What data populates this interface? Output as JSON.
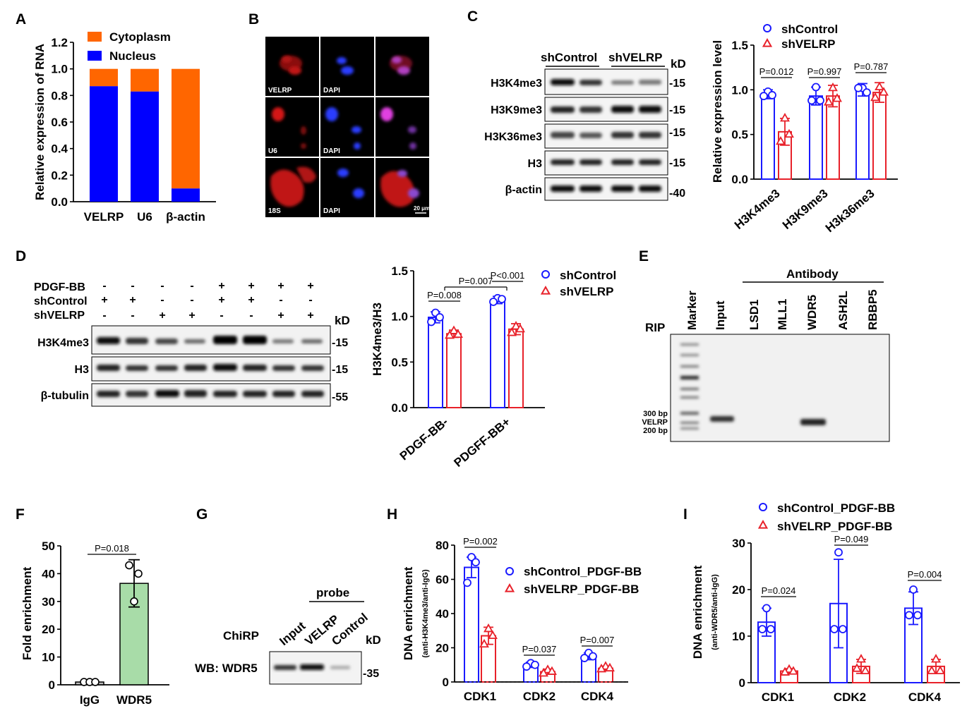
{
  "panels": [
    "A",
    "B",
    "C",
    "D",
    "E",
    "F",
    "G",
    "H",
    "I"
  ],
  "colors": {
    "control": "#1a1aff",
    "velrp": "#e8212a",
    "cytoplasm": "#ff6600",
    "nucleus": "#0000ff",
    "wdr5": "#a8dca8"
  },
  "chart_data": [
    {
      "id": "A",
      "type": "bar",
      "stacked": true,
      "categories": [
        "VELRP",
        "U6",
        "β-actin"
      ],
      "series": [
        {
          "name": "Nucleus",
          "values": [
            0.87,
            0.83,
            0.1
          ]
        },
        {
          "name": "Cytoplasm",
          "values": [
            0.13,
            0.17,
            0.9
          ]
        }
      ],
      "ylabel": "Relative expression of RNA",
      "ylim": [
        0,
        1.2
      ],
      "yticks": [
        "0.0",
        "0.2",
        "0.4",
        "0.6",
        "0.8",
        "1.0",
        "1.2"
      ],
      "legend": "top-right"
    },
    {
      "id": "C",
      "type": "bar",
      "categories": [
        "H3K4me3",
        "H3K9me3",
        "H3k36me3"
      ],
      "series": [
        {
          "name": "shControl",
          "values": [
            0.95,
            0.93,
            1.0
          ],
          "errors": [
            0.05,
            0.1,
            0.07
          ]
        },
        {
          "name": "shVELRP",
          "values": [
            0.53,
            0.93,
            0.97
          ],
          "errors": [
            0.15,
            0.12,
            0.11
          ]
        }
      ],
      "points": [
        [
          [
            0.98,
            0.94,
            0.93
          ],
          [
            0.68,
            0.5,
            0.42
          ]
        ],
        [
          [
            1.03,
            0.88,
            0.88
          ],
          [
            1.02,
            0.9,
            0.86
          ]
        ],
        [
          [
            1.02,
            0.97,
            1.02
          ],
          [
            1.03,
            0.97,
            0.91
          ]
        ]
      ],
      "pvalues": [
        "P=0.012",
        "P=0.997",
        "P=0.787"
      ],
      "ylabel": "Relative expression level",
      "ylim": [
        0,
        1.5
      ],
      "yticks": [
        "0.0",
        "0.5",
        "1.0",
        "1.5"
      ],
      "legend": "top"
    },
    {
      "id": "D",
      "type": "bar",
      "categories": [
        "PDGF-BB-",
        "PDGFF-BB+"
      ],
      "series": [
        {
          "name": "shControl",
          "values": [
            0.99,
            1.18
          ],
          "errors": [
            0.06,
            0.04
          ]
        },
        {
          "name": "shVELRP",
          "values": [
            0.81,
            0.86
          ],
          "errors": [
            0.04,
            0.06
          ]
        }
      ],
      "points": [
        [
          [
            1.04,
            0.99,
            0.94
          ],
          [
            0.84,
            0.8,
            0.79
          ]
        ],
        [
          [
            1.2,
            1.19,
            1.16
          ],
          [
            0.89,
            0.86,
            0.82
          ]
        ]
      ],
      "pvalues_within": [
        "P=0.008",
        "P<0.001"
      ],
      "pvalue_between": "P=0.007",
      "ylabel": "H3K4me3/H3",
      "ylim": [
        0,
        1.5
      ],
      "yticks": [
        "0.0",
        "0.5",
        "1.0",
        "1.5"
      ],
      "legend": "top-right"
    },
    {
      "id": "F",
      "type": "bar",
      "categories": [
        "IgG",
        "WDR5"
      ],
      "values": [
        1.0,
        36.5
      ],
      "errors": [
        0.2,
        8.5
      ],
      "points": [
        [
          1.0,
          1.0,
          1.0
        ],
        [
          43,
          40,
          30
        ]
      ],
      "pvalue": "P=0.018",
      "ylabel": "Fold enrichment",
      "ylim": [
        0,
        50
      ],
      "yticks": [
        "0",
        "10",
        "20",
        "30",
        "40",
        "50"
      ]
    },
    {
      "id": "H",
      "type": "bar",
      "categories": [
        "CDK1",
        "CDK2",
        "CDK4"
      ],
      "series": [
        {
          "name": "shControl_PDGF-BB",
          "values": [
            67,
            10,
            15
          ],
          "errors": [
            6,
            1.5,
            2
          ]
        },
        {
          "name": "shVELRP_PDGF-BB",
          "values": [
            27,
            6,
            8
          ],
          "errors": [
            5,
            1.5,
            1.2
          ]
        }
      ],
      "points": [
        [
          [
            73,
            70,
            58
          ],
          [
            31,
            27,
            22
          ]
        ],
        [
          [
            11,
            10,
            9
          ],
          [
            7,
            6,
            5
          ]
        ],
        [
          [
            17,
            15,
            14
          ],
          [
            9,
            8,
            7.5
          ]
        ]
      ],
      "pvalues": [
        "P=0.002",
        "P=0.037",
        "P=0.007"
      ],
      "ylabel": "DNA enrichment",
      "ylabel2": "(anti-H3K4me3/anti-IgG)",
      "ylim": [
        0,
        80
      ],
      "yticks": [
        "0",
        "20",
        "40",
        "60",
        "80"
      ],
      "legend": "right"
    },
    {
      "id": "I",
      "type": "bar",
      "categories": [
        "CDK1",
        "CDK2",
        "CDK4"
      ],
      "series": [
        {
          "name": "shControl_PDGF-BB",
          "values": [
            13,
            17,
            16
          ],
          "errors": [
            3,
            9.5,
            3.5
          ]
        },
        {
          "name": "shVELRP_PDGF-BB",
          "values": [
            2.5,
            3.5,
            3.5
          ],
          "errors": [
            0.5,
            1.5,
            1.5
          ]
        }
      ],
      "points": [
        [
          [
            16,
            11.5,
            11.5
          ],
          [
            2.8,
            2.4,
            2.2
          ]
        ],
        [
          [
            28,
            11.5,
            11.5
          ],
          [
            5,
            2.5,
            3
          ]
        ],
        [
          [
            20,
            14.5,
            14.5
          ],
          [
            5,
            2.5,
            2.5
          ]
        ]
      ],
      "pvalues": [
        "P=0.024",
        "P=0.049",
        "P=0.004"
      ],
      "ylabel": "DNA enrichment",
      "ylabel2": "(anti-WDR5/anti-IgG)",
      "ylim": [
        0,
        30
      ],
      "yticks": [
        "0",
        "10",
        "20",
        "30"
      ],
      "legend": "top"
    }
  ],
  "panel_b": {
    "labels": [
      "VELRP",
      "DAPI",
      "U6",
      "DAPI",
      "18S",
      "DAPI"
    ],
    "scale_bar": "20 μm"
  },
  "panel_c_blot": {
    "groups": [
      "shControl",
      "shVELRP"
    ],
    "kd_label": "kD",
    "rows": [
      {
        "label": "H3K4me3",
        "kd": "-15"
      },
      {
        "label": "H3K9me3",
        "kd": "-15"
      },
      {
        "label": "H3K36me3",
        "kd": "-15"
      },
      {
        "label": "H3",
        "kd": "-15"
      },
      {
        "label": "β-actin",
        "kd": "-40"
      }
    ]
  },
  "panel_d_blot": {
    "conditions": [
      {
        "label": "PDGF-BB",
        "signs": [
          "-",
          "-",
          "-",
          "-",
          "+",
          "+",
          "+",
          "+"
        ]
      },
      {
        "label": "shControl",
        "signs": [
          "+",
          "+",
          "-",
          "-",
          "+",
          "+",
          "-",
          "-"
        ]
      },
      {
        "label": "shVELRP",
        "signs": [
          "-",
          "-",
          "+",
          "+",
          "-",
          "-",
          "+",
          "+"
        ]
      }
    ],
    "kd_label": "kD",
    "rows": [
      {
        "label": "H3K4me3",
        "kd": "-15"
      },
      {
        "label": "H3",
        "kd": "-15"
      },
      {
        "label": "β-tubulin",
        "kd": "-55"
      }
    ]
  },
  "panel_e": {
    "rip_label": "RIP",
    "antibody_label": "Antibody",
    "lanes": [
      "Marker",
      "Input",
      "LSD1",
      "MLL1",
      "WDR5",
      "ASH2L",
      "RBBP5"
    ],
    "markers": [
      "300 bp",
      "VELRP",
      "200 bp"
    ]
  },
  "panel_g": {
    "probe_label": "probe",
    "lanes": [
      "Input",
      "VELRP",
      "Control"
    ],
    "chirp_label": "ChiRP",
    "kd_label": "kD",
    "wb_label": "WB: WDR5",
    "kd": "-35"
  }
}
